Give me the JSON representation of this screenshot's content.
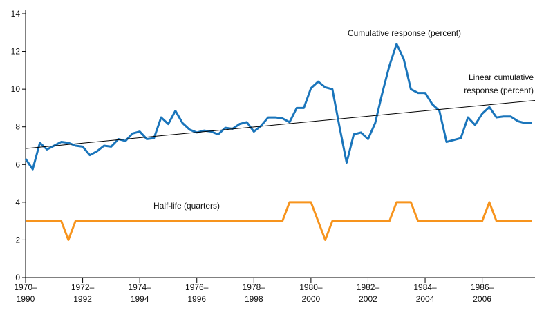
{
  "chart_data": {
    "type": "line",
    "annotations": [
      "Cumulative response (percent)",
      "Linear cumulative",
      "response (percent)",
      "Half-life (quarters)"
    ],
    "x": [
      1970,
      1970.25,
      1970.5,
      1970.75,
      1971,
      1971.25,
      1971.5,
      1971.75,
      1972,
      1972.25,
      1972.5,
      1972.75,
      1973,
      1973.25,
      1973.5,
      1973.75,
      1974,
      1974.25,
      1974.5,
      1974.75,
      1975,
      1975.25,
      1975.5,
      1975.75,
      1976,
      1976.25,
      1976.5,
      1976.75,
      1977,
      1977.25,
      1977.5,
      1977.75,
      1978,
      1978.25,
      1978.5,
      1978.75,
      1979,
      1979.25,
      1979.5,
      1979.75,
      1980,
      1980.25,
      1980.5,
      1980.75,
      1981,
      1981.25,
      1981.5,
      1981.75,
      1982,
      1982.25,
      1982.5,
      1982.75,
      1983,
      1983.25,
      1983.5,
      1983.75,
      1984,
      1984.25,
      1984.5,
      1984.75,
      1985,
      1985.25,
      1985.5,
      1985.75,
      1986,
      1986.25,
      1986.5,
      1986.75,
      1987,
      1987.25,
      1987.5,
      1987.75
    ],
    "series": [
      {
        "color": "#1a75bb",
        "values": [
          6.3,
          5.75,
          7.15,
          6.8,
          7.0,
          7.2,
          7.15,
          7.0,
          6.95,
          6.5,
          6.7,
          7.0,
          6.95,
          7.35,
          7.25,
          7.65,
          7.75,
          7.35,
          7.4,
          8.5,
          8.15,
          8.85,
          8.2,
          7.85,
          7.7,
          7.8,
          7.75,
          7.6,
          7.95,
          7.9,
          8.15,
          8.25,
          7.75,
          8.05,
          8.5,
          8.5,
          8.45,
          8.25,
          9.0,
          9.0,
          10.05,
          10.4,
          10.1,
          10.0,
          8.0,
          6.1,
          7.6,
          7.7,
          7.35,
          8.2,
          9.8,
          11.25,
          12.4,
          11.6,
          10.0,
          9.8,
          9.8,
          9.2,
          8.85,
          7.2,
          7.3,
          7.4,
          8.5,
          8.1,
          8.7,
          9.05,
          8.5,
          8.55,
          8.55,
          8.3,
          8.2,
          8.2
        ]
      },
      {
        "color": "#000000",
        "x": [
          1970,
          1987.85
        ],
        "values": [
          6.85,
          9.4
        ]
      },
      {
        "color": "#f7941d",
        "values": [
          3,
          3,
          3,
          3,
          3,
          3,
          2,
          3,
          3,
          3,
          3,
          3,
          3,
          3,
          3,
          3,
          3,
          3,
          3,
          3,
          3,
          3,
          3,
          3,
          3,
          3,
          3,
          3,
          3,
          3,
          3,
          3,
          3,
          3,
          3,
          3,
          3,
          4,
          4,
          4,
          4,
          3,
          2,
          3,
          3,
          3,
          3,
          3,
          3,
          3,
          3,
          3,
          4,
          4,
          4,
          3,
          3,
          3,
          3,
          3,
          3,
          3,
          3,
          3,
          3,
          4,
          3,
          3,
          3,
          3,
          3,
          3
        ]
      }
    ],
    "xlim": [
      1970,
      1987.85
    ],
    "xticks": [
      {
        "value": 1970,
        "label": "1970–1990"
      },
      {
        "value": 1972,
        "label": "1972–1992"
      },
      {
        "value": 1974,
        "label": "1974–1994"
      },
      {
        "value": 1976,
        "label": "1976–1996"
      },
      {
        "value": 1978,
        "label": "1978–1998"
      },
      {
        "value": 1980,
        "label": "1980–2000"
      },
      {
        "value": 1982,
        "label": "1982–2002"
      },
      {
        "value": 1984,
        "label": "1984–2004"
      },
      {
        "value": 1986,
        "label": "1986–2006"
      }
    ],
    "ylim": [
      0,
      14
    ],
    "yticks": [
      0,
      2,
      4,
      6,
      8,
      10,
      12,
      14
    ],
    "grid": false
  }
}
